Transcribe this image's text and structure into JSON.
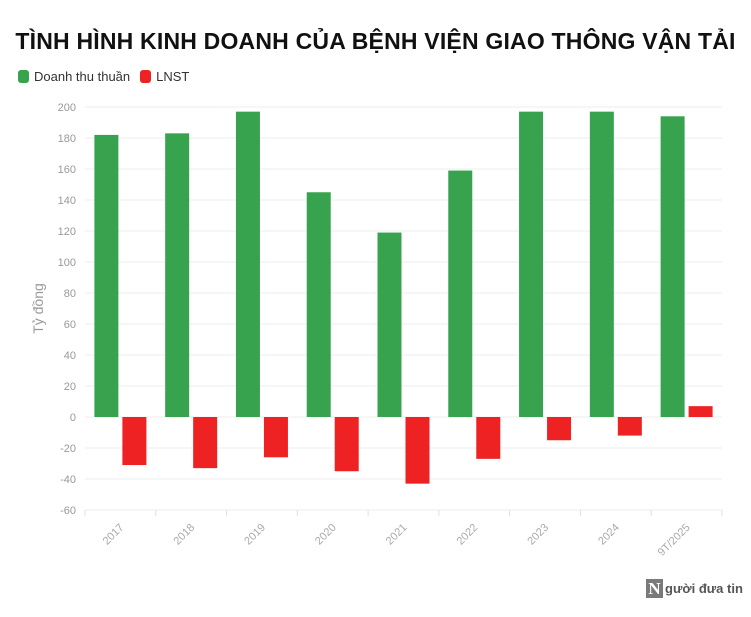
{
  "chart_data": {
    "type": "bar",
    "title": "TÌNH HÌNH KINH DOANH CỦA BỆNH VIỆN GIAO THÔNG VẬN TẢI",
    "xlabel": "",
    "ylabel": "Tỷ đồng",
    "categories": [
      "2017",
      "2018",
      "2019",
      "2020",
      "2021",
      "2022",
      "2023",
      "2024",
      "9T/2025"
    ],
    "series": [
      {
        "name": "Doanh thu thuần",
        "color": "#38a34f",
        "values": [
          182,
          183,
          197,
          145,
          119,
          159,
          197,
          197,
          194
        ]
      },
      {
        "name": "LNST",
        "color": "#ee2222",
        "values": [
          -31,
          -33,
          -26,
          -35,
          -43,
          -27,
          -15,
          -12,
          7
        ]
      }
    ],
    "ylim": [
      -60,
      200
    ],
    "yticks": [
      200,
      180,
      160,
      140,
      120,
      100,
      80,
      60,
      40,
      20,
      0,
      -20,
      -40,
      -60
    ],
    "grid": true,
    "legend_position": "top-left"
  },
  "watermark": {
    "mark": "N",
    "text": "gười đưa tin"
  }
}
